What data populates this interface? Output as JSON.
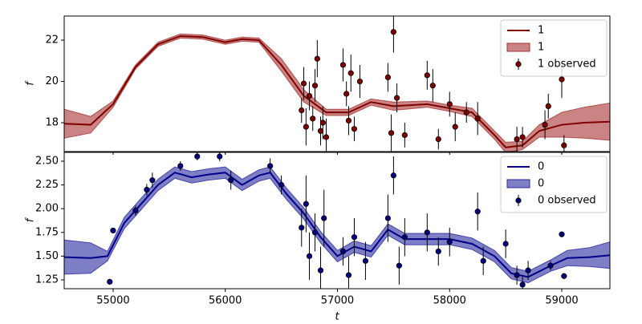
{
  "chart_data": [
    {
      "type": "line",
      "ylabel": "f",
      "legend": "upper right",
      "xlim": [
        54564,
        59429
      ],
      "ylim": [
        16.6,
        23.17
      ],
      "xticks": [
        55000,
        56000,
        57000,
        58000,
        59000
      ],
      "yticks": [
        18,
        20,
        22
      ],
      "x": [
        54564,
        54800,
        55000,
        55200,
        55400,
        55600,
        55800,
        56000,
        56150,
        56300,
        56500,
        56700,
        56900,
        57100,
        57300,
        57500,
        57800,
        58000,
        58200,
        58400,
        58500,
        58650,
        58800,
        59000,
        59200,
        59429
      ],
      "series": [
        {
          "name": "1",
          "color": "#800000",
          "values": [
            17.95,
            17.9,
            18.9,
            20.7,
            21.8,
            22.2,
            22.15,
            21.9,
            22.05,
            22.0,
            20.8,
            19.3,
            18.5,
            18.5,
            19.0,
            18.8,
            18.9,
            18.7,
            18.5,
            17.4,
            16.8,
            16.9,
            17.6,
            17.9,
            18.0,
            18.05
          ]
        }
      ],
      "band": {
        "name": "1",
        "color": "#a83232",
        "lower": [
          17.25,
          17.5,
          18.75,
          20.6,
          21.7,
          22.1,
          22.05,
          21.8,
          21.95,
          21.9,
          20.5,
          19.0,
          18.35,
          18.35,
          18.85,
          18.6,
          18.75,
          18.55,
          18.3,
          17.2,
          16.55,
          16.7,
          17.3,
          17.3,
          17.25,
          17.15
        ],
        "upper": [
          18.65,
          18.3,
          19.05,
          20.8,
          21.9,
          22.3,
          22.25,
          22.0,
          22.15,
          22.1,
          21.1,
          19.6,
          18.65,
          18.65,
          19.15,
          19.0,
          19.05,
          18.85,
          18.7,
          17.6,
          17.05,
          17.1,
          17.9,
          18.5,
          18.75,
          18.95
        ]
      },
      "observed": {
        "name": "1 observed",
        "color": "#800000",
        "x": [
          56680,
          56700,
          56720,
          56750,
          56780,
          56800,
          56820,
          56850,
          56870,
          56900,
          57050,
          57080,
          57100,
          57120,
          57150,
          57200,
          57450,
          57480,
          57500,
          57530,
          57600,
          57800,
          57850,
          57900,
          58000,
          58050,
          58150,
          58250,
          58600,
          58650,
          58850,
          58880,
          59000,
          59020
        ],
        "values": [
          18.6,
          19.9,
          17.8,
          19.3,
          18.2,
          19.8,
          21.1,
          17.6,
          18.0,
          17.3,
          20.8,
          19.4,
          18.1,
          20.4,
          17.7,
          20.0,
          20.2,
          17.5,
          22.4,
          19.2,
          17.4,
          20.3,
          19.8,
          17.2,
          18.9,
          17.8,
          18.5,
          18.2,
          17.2,
          17.3,
          17.9,
          18.8,
          20.1,
          16.9
        ],
        "errors": [
          0.6,
          0.8,
          0.9,
          0.7,
          0.6,
          0.8,
          0.9,
          0.7,
          0.8,
          0.9,
          0.8,
          0.6,
          0.7,
          0.9,
          0.6,
          0.8,
          0.7,
          0.9,
          1.0,
          0.7,
          0.6,
          0.7,
          0.8,
          0.5,
          0.6,
          0.7,
          0.5,
          0.8,
          0.6,
          0.5,
          0.7,
          0.6,
          0.9,
          0.5
        ]
      }
    },
    {
      "type": "line",
      "ylabel": "f",
      "xlabel": "t",
      "legend": "upper right",
      "xlim": [
        54564,
        59429
      ],
      "ylim": [
        1.157,
        2.593
      ],
      "xticks": [
        55000,
        56000,
        57000,
        58000,
        59000
      ],
      "yticks": [
        {
          "value": 1.25,
          "label": "1.25"
        },
        {
          "value": 1.5,
          "label": "1.50"
        },
        {
          "value": 1.75,
          "label": "1.75"
        },
        {
          "value": 2,
          "label": "2.00"
        },
        {
          "value": 2.25,
          "label": "2.25"
        },
        {
          "value": 2.5,
          "label": "2.50"
        }
      ],
      "x": [
        54564,
        54800,
        54950,
        55100,
        55250,
        55400,
        55550,
        55700,
        55850,
        56000,
        56150,
        56300,
        56400,
        56550,
        56700,
        56850,
        57000,
        57150,
        57300,
        57450,
        57600,
        57800,
        58000,
        58200,
        58400,
        58550,
        58700,
        58900,
        59050,
        59250,
        59429
      ],
      "series": [
        {
          "name": "0",
          "color": "#00008b",
          "values": [
            1.49,
            1.48,
            1.5,
            1.85,
            2.05,
            2.25,
            2.38,
            2.33,
            2.36,
            2.38,
            2.25,
            2.35,
            2.38,
            2.15,
            1.95,
            1.7,
            1.5,
            1.6,
            1.55,
            1.78,
            1.68,
            1.68,
            1.68,
            1.63,
            1.5,
            1.32,
            1.28,
            1.4,
            1.48,
            1.49,
            1.51
          ]
        }
      ],
      "band": {
        "name": "0",
        "color": "#2a2aa0",
        "lower": [
          1.31,
          1.32,
          1.45,
          1.79,
          1.99,
          2.19,
          2.32,
          2.27,
          2.3,
          2.32,
          2.19,
          2.29,
          2.32,
          2.09,
          1.89,
          1.64,
          1.44,
          1.54,
          1.49,
          1.72,
          1.62,
          1.62,
          1.62,
          1.57,
          1.44,
          1.26,
          1.22,
          1.34,
          1.4,
          1.39,
          1.37
        ],
        "upper": [
          1.67,
          1.64,
          1.55,
          1.91,
          2.11,
          2.31,
          2.44,
          2.39,
          2.42,
          2.44,
          2.31,
          2.41,
          2.44,
          2.21,
          2.01,
          1.76,
          1.56,
          1.66,
          1.61,
          1.84,
          1.74,
          1.74,
          1.74,
          1.69,
          1.56,
          1.38,
          1.34,
          1.46,
          1.56,
          1.59,
          1.65
        ]
      },
      "observed": {
        "name": "0 observed",
        "color": "#000080",
        "x": [
          54970,
          55000,
          55200,
          55300,
          55350,
          55600,
          55750,
          55950,
          56050,
          56400,
          56500,
          56680,
          56720,
          56750,
          56800,
          56850,
          56880,
          57050,
          57100,
          57150,
          57250,
          57450,
          57500,
          57550,
          57600,
          57800,
          57900,
          58000,
          58250,
          58300,
          58500,
          58600,
          58650,
          58700,
          58900,
          59000,
          59020
        ],
        "values": [
          1.23,
          1.77,
          1.98,
          2.2,
          2.3,
          2.45,
          2.55,
          2.55,
          2.3,
          2.45,
          2.25,
          1.8,
          2.05,
          1.5,
          1.75,
          1.35,
          1.9,
          1.55,
          1.3,
          1.7,
          1.45,
          1.9,
          2.35,
          1.4,
          1.7,
          1.75,
          1.55,
          1.65,
          1.97,
          1.45,
          1.63,
          1.3,
          1.2,
          1.35,
          1.4,
          1.73,
          1.29
        ],
        "errors": [
          0.03,
          0.03,
          0.05,
          0.06,
          0.08,
          0.05,
          0.04,
          0.05,
          0.1,
          0.08,
          0.1,
          0.2,
          0.3,
          0.25,
          0.2,
          0.25,
          0.3,
          0.15,
          0.2,
          0.2,
          0.2,
          0.25,
          0.2,
          0.2,
          0.2,
          0.2,
          0.15,
          0.15,
          0.2,
          0.15,
          0.15,
          0.1,
          0.1,
          0.1,
          0.05,
          0.03,
          0.03
        ]
      }
    }
  ]
}
